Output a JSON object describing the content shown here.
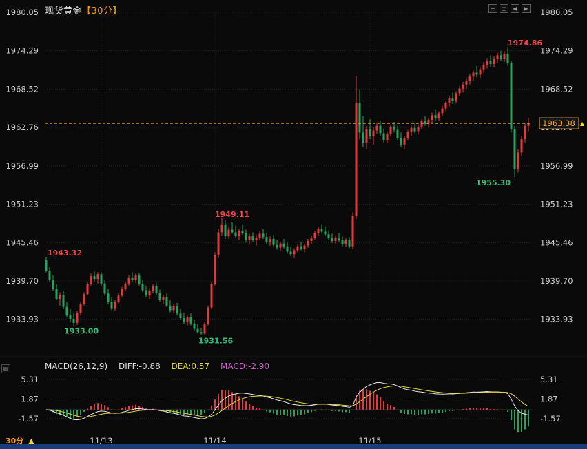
{
  "window": {
    "title_instrument": "现货黄金",
    "title_period": "【30分】",
    "toolbar_icons": [
      "+",
      "□",
      "◀",
      "▶"
    ],
    "side_icon": "▤"
  },
  "footer": {
    "period": "30分",
    "marker": "▲"
  },
  "colors": {
    "up": "#e23b3b",
    "down": "#27a35f",
    "up_text": "#e84545",
    "down_text": "#33bb77",
    "accent": "#f8a321",
    "marker_yellow": "#ffd321",
    "grid": "#232323",
    "session_grid": "#1e1e1e",
    "axis_label": "#c8c8c8",
    "diff_line": "#e8e8e8",
    "dea_line": "#e3d63b",
    "macd_value": "#d05cd0",
    "divider": "#1f1f1f",
    "bottom_bar": "#1b3c79"
  },
  "chart_data": [
    {
      "type": "candlestick",
      "title": "现货黄金【30分】",
      "symbol": "现货黄金",
      "interval": "30分",
      "y_ticks": [
        1980.05,
        1974.29,
        1968.52,
        1962.76,
        1956.99,
        1951.23,
        1945.46,
        1939.7,
        1933.93
      ],
      "ylim": [
        1930.3,
        1981.9
      ],
      "x_ticks": [
        {
          "label": "11/13",
          "idx": 16
        },
        {
          "label": "11/14",
          "idx": 49
        },
        {
          "label": "11/15",
          "idx": 94
        }
      ],
      "last_price": 1963.38,
      "price_marker": "▲",
      "annotations": [
        {
          "text": "1943.32",
          "idx": 0,
          "price": 1943.32,
          "side": "high",
          "anchor": "start",
          "dx": 2
        },
        {
          "text": "1933.00",
          "idx": 8,
          "price": 1933.0,
          "side": "low",
          "anchor": "start",
          "dx": -14
        },
        {
          "text": "1931.56",
          "idx": 45,
          "price": 1931.56,
          "side": "low",
          "anchor": "start",
          "dx": -4
        },
        {
          "text": "1949.11",
          "idx": 51,
          "price": 1949.11,
          "side": "high",
          "anchor": "start",
          "dx": -10
        },
        {
          "text": "1974.86",
          "idx": 134,
          "price": 1974.86,
          "side": "high",
          "anchor": "start",
          "dx": 0
        },
        {
          "text": "1955.30",
          "idx": 136,
          "price": 1955.3,
          "side": "low",
          "anchor": "end",
          "dx": -6
        }
      ],
      "candles": [
        [
          1942.8,
          1943.32,
          1941.0,
          1941.2
        ],
        [
          1941.2,
          1941.8,
          1939.5,
          1939.9
        ],
        [
          1939.9,
          1940.5,
          1938.2,
          1938.5
        ],
        [
          1938.5,
          1939.2,
          1936.8,
          1937.0
        ],
        [
          1937.0,
          1938.0,
          1936.0,
          1937.6
        ],
        [
          1937.6,
          1938.2,
          1935.5,
          1935.8
        ],
        [
          1935.8,
          1936.5,
          1934.2,
          1934.5
        ],
        [
          1934.5,
          1935.5,
          1933.5,
          1934.0
        ],
        [
          1934.0,
          1934.8,
          1933.0,
          1933.4
        ],
        [
          1933.4,
          1935.2,
          1933.1,
          1934.9
        ],
        [
          1934.9,
          1936.5,
          1934.5,
          1936.2
        ],
        [
          1936.2,
          1938.0,
          1936.0,
          1937.7
        ],
        [
          1937.7,
          1939.5,
          1937.5,
          1939.2
        ],
        [
          1939.2,
          1940.8,
          1939.0,
          1940.4
        ],
        [
          1940.4,
          1941.2,
          1939.6,
          1940.0
        ],
        [
          1940.0,
          1941.0,
          1939.3,
          1940.7
        ],
        [
          1940.7,
          1941.0,
          1939.0,
          1939.3
        ],
        [
          1939.3,
          1939.8,
          1937.5,
          1937.8
        ],
        [
          1937.8,
          1938.5,
          1936.2,
          1936.5
        ],
        [
          1936.5,
          1937.2,
          1935.3,
          1935.6
        ],
        [
          1935.6,
          1936.8,
          1935.2,
          1936.5
        ],
        [
          1936.5,
          1937.8,
          1936.3,
          1937.5
        ],
        [
          1937.5,
          1938.8,
          1937.2,
          1938.5
        ],
        [
          1938.5,
          1939.6,
          1938.2,
          1939.3
        ],
        [
          1939.3,
          1940.5,
          1939.0,
          1940.2
        ],
        [
          1940.2,
          1941.0,
          1939.5,
          1939.8
        ],
        [
          1939.8,
          1940.8,
          1939.4,
          1940.5
        ],
        [
          1940.5,
          1940.9,
          1939.0,
          1939.2
        ],
        [
          1939.2,
          1939.8,
          1938.0,
          1938.3
        ],
        [
          1938.3,
          1939.0,
          1937.2,
          1937.5
        ],
        [
          1937.5,
          1938.6,
          1937.0,
          1938.2
        ],
        [
          1938.2,
          1939.2,
          1937.8,
          1938.9
        ],
        [
          1938.9,
          1939.4,
          1937.6,
          1937.9
        ],
        [
          1937.9,
          1938.4,
          1936.5,
          1936.8
        ],
        [
          1936.8,
          1937.6,
          1936.2,
          1937.2
        ],
        [
          1937.2,
          1937.8,
          1935.8,
          1936.0
        ],
        [
          1936.0,
          1936.8,
          1935.0,
          1935.3
        ],
        [
          1935.3,
          1936.2,
          1934.8,
          1935.9
        ],
        [
          1935.9,
          1936.4,
          1934.5,
          1934.8
        ],
        [
          1934.8,
          1935.5,
          1933.8,
          1934.1
        ],
        [
          1934.1,
          1934.9,
          1933.2,
          1933.5
        ],
        [
          1933.5,
          1934.5,
          1933.0,
          1934.2
        ],
        [
          1934.2,
          1934.8,
          1933.0,
          1933.3
        ],
        [
          1933.3,
          1933.9,
          1932.2,
          1932.5
        ],
        [
          1932.5,
          1933.2,
          1931.8,
          1932.0
        ],
        [
          1932.0,
          1932.6,
          1931.56,
          1931.8
        ],
        [
          1931.8,
          1933.5,
          1931.6,
          1933.2
        ],
        [
          1933.2,
          1936.0,
          1933.0,
          1935.7
        ],
        [
          1935.7,
          1939.5,
          1935.5,
          1939.2
        ],
        [
          1939.2,
          1944.0,
          1939.0,
          1943.6
        ],
        [
          1943.6,
          1947.5,
          1943.2,
          1947.0
        ],
        [
          1947.0,
          1949.11,
          1946.5,
          1948.2
        ],
        [
          1948.2,
          1948.8,
          1946.0,
          1946.4
        ],
        [
          1946.4,
          1947.8,
          1946.0,
          1947.4
        ],
        [
          1947.4,
          1948.5,
          1946.8,
          1947.0
        ],
        [
          1947.0,
          1948.0,
          1946.2,
          1946.5
        ],
        [
          1946.5,
          1947.5,
          1945.8,
          1947.2
        ],
        [
          1947.2,
          1948.2,
          1946.6,
          1946.9
        ],
        [
          1946.9,
          1947.4,
          1945.5,
          1945.8
        ],
        [
          1945.8,
          1946.8,
          1945.2,
          1946.4
        ],
        [
          1946.4,
          1947.0,
          1945.5,
          1945.9
        ],
        [
          1945.9,
          1946.6,
          1945.0,
          1946.2
        ],
        [
          1946.2,
          1947.2,
          1945.8,
          1946.8
        ],
        [
          1946.8,
          1947.5,
          1946.0,
          1946.3
        ],
        [
          1946.3,
          1946.9,
          1945.2,
          1945.5
        ],
        [
          1945.5,
          1946.4,
          1945.0,
          1946.0
        ],
        [
          1946.0,
          1946.6,
          1944.8,
          1945.1
        ],
        [
          1945.1,
          1945.9,
          1944.4,
          1944.7
        ],
        [
          1944.7,
          1945.6,
          1944.2,
          1945.3
        ],
        [
          1945.3,
          1946.0,
          1944.6,
          1944.9
        ],
        [
          1944.9,
          1945.5,
          1943.8,
          1944.1
        ],
        [
          1944.1,
          1944.8,
          1943.4,
          1943.7
        ],
        [
          1943.7,
          1944.6,
          1943.2,
          1944.3
        ],
        [
          1944.3,
          1945.2,
          1944.0,
          1944.9
        ],
        [
          1944.9,
          1945.6,
          1944.3,
          1944.5
        ],
        [
          1944.5,
          1945.3,
          1944.0,
          1945.0
        ],
        [
          1945.0,
          1946.0,
          1944.7,
          1945.7
        ],
        [
          1945.7,
          1946.5,
          1945.3,
          1946.2
        ],
        [
          1946.2,
          1947.2,
          1945.9,
          1946.9
        ],
        [
          1946.9,
          1947.8,
          1946.5,
          1947.5
        ],
        [
          1947.5,
          1948.2,
          1946.8,
          1947.1
        ],
        [
          1947.1,
          1947.9,
          1946.4,
          1946.7
        ],
        [
          1946.7,
          1947.3,
          1945.8,
          1946.1
        ],
        [
          1946.1,
          1946.8,
          1945.4,
          1945.7
        ],
        [
          1945.7,
          1946.5,
          1945.2,
          1946.2
        ],
        [
          1946.2,
          1946.9,
          1945.6,
          1945.9
        ],
        [
          1945.9,
          1946.4,
          1944.9,
          1945.2
        ],
        [
          1945.2,
          1946.1,
          1944.8,
          1945.8
        ],
        [
          1945.8,
          1946.3,
          1944.6,
          1944.9
        ],
        [
          1944.9,
          1950.0,
          1944.5,
          1949.5
        ],
        [
          1949.5,
          1970.5,
          1949.0,
          1966.5
        ],
        [
          1966.5,
          1968.5,
          1961.0,
          1962.0
        ],
        [
          1962.0,
          1964.5,
          1959.8,
          1960.5
        ],
        [
          1960.5,
          1963.0,
          1959.5,
          1962.5
        ],
        [
          1962.5,
          1964.0,
          1961.0,
          1961.5
        ],
        [
          1961.5,
          1962.8,
          1960.2,
          1962.3
        ],
        [
          1962.3,
          1963.5,
          1961.8,
          1963.0
        ],
        [
          1963.0,
          1963.8,
          1961.5,
          1961.9
        ],
        [
          1961.9,
          1962.6,
          1960.5,
          1960.9
        ],
        [
          1960.9,
          1962.2,
          1960.4,
          1961.8
        ],
        [
          1961.8,
          1963.2,
          1961.4,
          1962.9
        ],
        [
          1962.9,
          1963.6,
          1962.0,
          1962.4
        ],
        [
          1962.4,
          1963.0,
          1960.8,
          1961.2
        ],
        [
          1961.2,
          1962.0,
          1959.8,
          1960.2
        ],
        [
          1960.2,
          1961.5,
          1959.5,
          1961.2
        ],
        [
          1961.2,
          1962.4,
          1960.8,
          1962.1
        ],
        [
          1962.1,
          1963.0,
          1961.5,
          1962.7
        ],
        [
          1962.7,
          1963.4,
          1961.9,
          1962.2
        ],
        [
          1962.2,
          1963.1,
          1961.7,
          1962.9
        ],
        [
          1962.9,
          1964.0,
          1962.5,
          1963.7
        ],
        [
          1963.7,
          1964.5,
          1963.0,
          1963.3
        ],
        [
          1963.3,
          1964.2,
          1962.8,
          1963.9
        ],
        [
          1963.9,
          1965.0,
          1963.5,
          1964.6
        ],
        [
          1964.6,
          1965.4,
          1963.8,
          1964.1
        ],
        [
          1964.1,
          1965.2,
          1963.7,
          1964.9
        ],
        [
          1964.9,
          1966.0,
          1964.5,
          1965.6
        ],
        [
          1965.6,
          1966.8,
          1965.2,
          1966.4
        ],
        [
          1966.4,
          1967.5,
          1965.9,
          1967.1
        ],
        [
          1967.1,
          1968.0,
          1966.3,
          1966.7
        ],
        [
          1966.7,
          1968.2,
          1966.4,
          1967.9
        ],
        [
          1967.9,
          1969.0,
          1967.5,
          1968.6
        ],
        [
          1968.6,
          1969.6,
          1968.0,
          1969.2
        ],
        [
          1969.2,
          1970.2,
          1968.6,
          1969.8
        ],
        [
          1969.8,
          1970.8,
          1969.2,
          1970.4
        ],
        [
          1970.4,
          1971.4,
          1969.8,
          1971.0
        ],
        [
          1971.0,
          1972.0,
          1970.3,
          1970.7
        ],
        [
          1970.7,
          1971.8,
          1970.2,
          1971.5
        ],
        [
          1971.5,
          1972.6,
          1971.0,
          1972.2
        ],
        [
          1972.2,
          1973.2,
          1971.6,
          1972.8
        ],
        [
          1972.8,
          1973.6,
          1971.9,
          1972.3
        ],
        [
          1972.3,
          1973.4,
          1971.8,
          1973.0
        ],
        [
          1973.0,
          1974.0,
          1972.4,
          1973.6
        ],
        [
          1973.6,
          1974.3,
          1972.8,
          1973.1
        ],
        [
          1973.1,
          1974.2,
          1972.6,
          1973.8
        ],
        [
          1973.8,
          1974.86,
          1972.0,
          1972.4
        ],
        [
          1972.4,
          1972.8,
          1962.0,
          1962.5
        ],
        [
          1962.5,
          1963.0,
          1955.3,
          1956.5
        ],
        [
          1956.5,
          1959.5,
          1956.0,
          1959.0
        ],
        [
          1959.0,
          1961.5,
          1958.5,
          1961.0
        ],
        [
          1961.0,
          1963.5,
          1960.5,
          1963.0
        ],
        [
          1963.0,
          1964.2,
          1962.2,
          1963.38
        ]
      ]
    },
    {
      "type": "macd",
      "name": "MACD(26,12,9)",
      "diff_label": "DIFF:-0.88",
      "dea_label": "DEA:0.57",
      "macd_label": "MACD:-2.90",
      "diff": -0.88,
      "dea": 0.57,
      "macd": -2.9,
      "y_ticks": [
        5.31,
        1.87,
        -1.57
      ],
      "ylim": [
        -5.0,
        6.3
      ]
    }
  ]
}
